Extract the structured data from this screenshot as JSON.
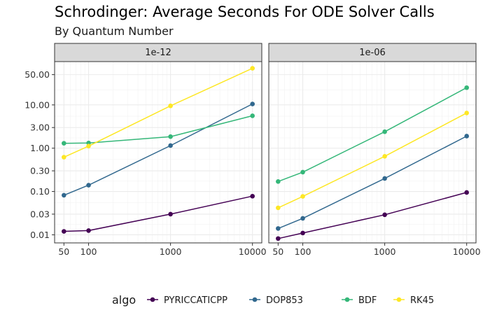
{
  "chart_data": {
    "type": "line",
    "title": "Schrodinger: Average Seconds For ODE Solver Calls",
    "subtitle": "By Quantum Number",
    "xlabel": "",
    "ylabel": "",
    "x_scale": "log10",
    "y_scale": "log10",
    "x": [
      50,
      100,
      1000,
      10000
    ],
    "x_ticks": [
      "50",
      "100",
      "1000",
      "10000"
    ],
    "y_ticks": [
      "0.01",
      "0.03",
      "0.10",
      "0.30",
      "1.00",
      "3.00",
      "10.00",
      "50.00"
    ],
    "y_tick_values": [
      0.01,
      0.03,
      0.1,
      0.3,
      1,
      3,
      10,
      50
    ],
    "ylim": [
      0.0065,
      100
    ],
    "legend": {
      "title": "algo",
      "position": "bottom"
    },
    "grid": true,
    "series_colors": {
      "PYRICCATICPP": "#440154",
      "DOP853": "#31688e",
      "BDF": "#35b779",
      "RK45": "#fde725"
    },
    "panels": [
      {
        "strip": "1e-12",
        "series": [
          {
            "name": "PYRICCATICPP",
            "values": [
              0.012,
              0.0125,
              0.03,
              0.078
            ]
          },
          {
            "name": "DOP853",
            "values": [
              0.082,
              0.14,
              1.15,
              10.5
            ]
          },
          {
            "name": "BDF",
            "values": [
              1.3,
              1.32,
              1.85,
              5.6
            ]
          },
          {
            "name": "RK45",
            "values": [
              0.62,
              1.12,
              9.5,
              70
            ]
          }
        ]
      },
      {
        "strip": "1e-06",
        "series": [
          {
            "name": "PYRICCATICPP",
            "values": [
              0.0082,
              0.011,
              0.029,
              0.095
            ]
          },
          {
            "name": "DOP853",
            "values": [
              0.014,
              0.024,
              0.2,
              1.9
            ]
          },
          {
            "name": "BDF",
            "values": [
              0.17,
              0.28,
              2.4,
              25
            ]
          },
          {
            "name": "RK45",
            "values": [
              0.042,
              0.077,
              0.65,
              6.5
            ]
          }
        ]
      }
    ]
  }
}
